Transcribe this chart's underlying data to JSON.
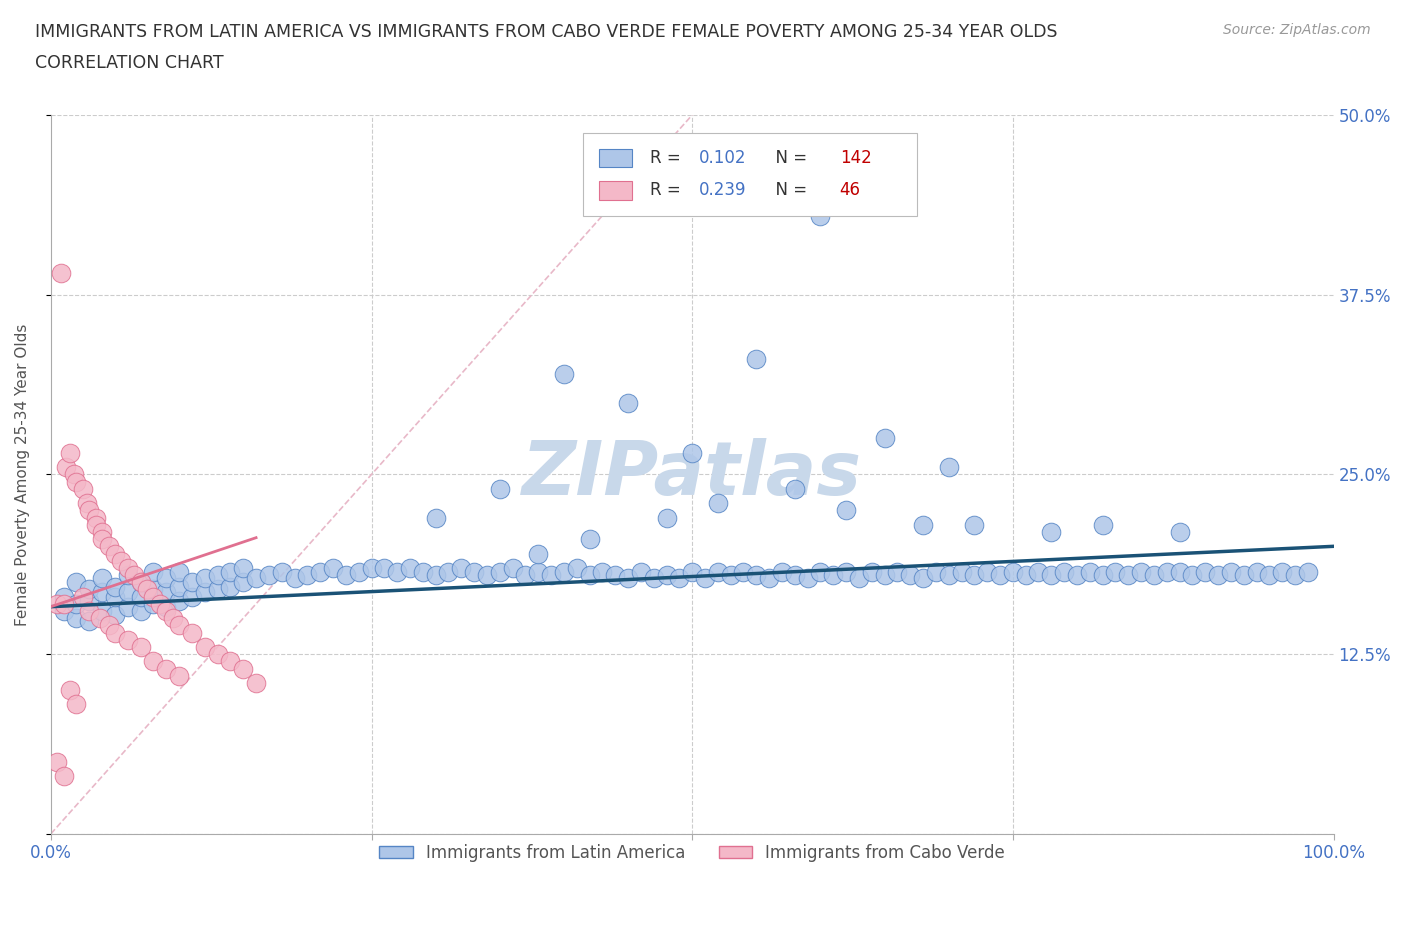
{
  "title_line1": "IMMIGRANTS FROM LATIN AMERICA VS IMMIGRANTS FROM CABO VERDE FEMALE POVERTY AMONG 25-34 YEAR OLDS",
  "title_line2": "CORRELATION CHART",
  "source_text": "Source: ZipAtlas.com",
  "ylabel": "Female Poverty Among 25-34 Year Olds",
  "xlim": [
    0.0,
    1.0
  ],
  "ylim": [
    0.0,
    0.5
  ],
  "xticks": [
    0.0,
    0.25,
    0.5,
    0.75,
    1.0
  ],
  "yticks": [
    0.0,
    0.125,
    0.25,
    0.375,
    0.5
  ],
  "series_latin": {
    "label": "Immigrants from Latin America",
    "color": "#aec6e8",
    "edge_color": "#5585c5",
    "R": 0.102,
    "N": 142,
    "trend_color": "#1a5276",
    "trend_intercept": 0.158,
    "trend_slope": 0.042
  },
  "series_cabo": {
    "label": "Immigrants from Cabo Verde",
    "color": "#f4b8c8",
    "edge_color": "#e07090",
    "R": 0.239,
    "N": 46,
    "trend_color": "#e07090",
    "trend_intercept": 0.158,
    "trend_slope": 0.3
  },
  "watermark": "ZIPatlas",
  "watermark_color": "#c8d8ea",
  "background_color": "#ffffff",
  "grid_color": "#cccccc",
  "title_color": "#333333",
  "axis_label_color": "#555555",
  "tick_label_color": "#4472c4",
  "legend_R_color": "#4472c4",
  "legend_N_color": "#c00000",
  "diag_color": "#e8b8c8",
  "latin_x": [
    0.01,
    0.01,
    0.02,
    0.02,
    0.02,
    0.03,
    0.03,
    0.03,
    0.04,
    0.04,
    0.04,
    0.05,
    0.05,
    0.05,
    0.06,
    0.06,
    0.06,
    0.07,
    0.07,
    0.07,
    0.08,
    0.08,
    0.08,
    0.09,
    0.09,
    0.09,
    0.1,
    0.1,
    0.1,
    0.11,
    0.11,
    0.12,
    0.12,
    0.13,
    0.13,
    0.14,
    0.14,
    0.15,
    0.15,
    0.16,
    0.17,
    0.18,
    0.19,
    0.2,
    0.21,
    0.22,
    0.23,
    0.24,
    0.25,
    0.26,
    0.27,
    0.28,
    0.29,
    0.3,
    0.31,
    0.32,
    0.33,
    0.34,
    0.35,
    0.36,
    0.37,
    0.38,
    0.39,
    0.4,
    0.41,
    0.42,
    0.43,
    0.44,
    0.45,
    0.46,
    0.47,
    0.48,
    0.49,
    0.5,
    0.51,
    0.52,
    0.53,
    0.54,
    0.55,
    0.56,
    0.57,
    0.58,
    0.59,
    0.6,
    0.61,
    0.62,
    0.63,
    0.64,
    0.65,
    0.66,
    0.67,
    0.68,
    0.69,
    0.7,
    0.71,
    0.72,
    0.73,
    0.74,
    0.75,
    0.76,
    0.77,
    0.78,
    0.79,
    0.8,
    0.81,
    0.82,
    0.83,
    0.84,
    0.85,
    0.86,
    0.87,
    0.88,
    0.89,
    0.9,
    0.91,
    0.92,
    0.93,
    0.94,
    0.95,
    0.96,
    0.97,
    0.98,
    0.55,
    0.6,
    0.45,
    0.4,
    0.5,
    0.3,
    0.35,
    0.65,
    0.7,
    0.48,
    0.52,
    0.38,
    0.42,
    0.58,
    0.62,
    0.68,
    0.72,
    0.78,
    0.82,
    0.88
  ],
  "latin_y": [
    0.155,
    0.165,
    0.15,
    0.16,
    0.175,
    0.148,
    0.162,
    0.17,
    0.155,
    0.168,
    0.178,
    0.152,
    0.165,
    0.172,
    0.158,
    0.168,
    0.18,
    0.155,
    0.165,
    0.175,
    0.16,
    0.17,
    0.182,
    0.158,
    0.168,
    0.178,
    0.162,
    0.172,
    0.182,
    0.165,
    0.175,
    0.168,
    0.178,
    0.17,
    0.18,
    0.172,
    0.182,
    0.175,
    0.185,
    0.178,
    0.18,
    0.182,
    0.178,
    0.18,
    0.182,
    0.185,
    0.18,
    0.182,
    0.185,
    0.185,
    0.182,
    0.185,
    0.182,
    0.18,
    0.182,
    0.185,
    0.182,
    0.18,
    0.182,
    0.185,
    0.18,
    0.182,
    0.18,
    0.182,
    0.185,
    0.18,
    0.182,
    0.18,
    0.178,
    0.182,
    0.178,
    0.18,
    0.178,
    0.182,
    0.178,
    0.182,
    0.18,
    0.182,
    0.18,
    0.178,
    0.182,
    0.18,
    0.178,
    0.182,
    0.18,
    0.182,
    0.178,
    0.182,
    0.18,
    0.182,
    0.18,
    0.178,
    0.182,
    0.18,
    0.182,
    0.18,
    0.182,
    0.18,
    0.182,
    0.18,
    0.182,
    0.18,
    0.182,
    0.18,
    0.182,
    0.18,
    0.182,
    0.18,
    0.182,
    0.18,
    0.182,
    0.182,
    0.18,
    0.182,
    0.18,
    0.182,
    0.18,
    0.182,
    0.18,
    0.182,
    0.18,
    0.182,
    0.33,
    0.43,
    0.3,
    0.32,
    0.265,
    0.22,
    0.24,
    0.275,
    0.255,
    0.22,
    0.23,
    0.195,
    0.205,
    0.24,
    0.225,
    0.215,
    0.215,
    0.21,
    0.215,
    0.21
  ],
  "cabo_x": [
    0.005,
    0.005,
    0.008,
    0.01,
    0.01,
    0.012,
    0.015,
    0.015,
    0.018,
    0.02,
    0.02,
    0.025,
    0.025,
    0.028,
    0.03,
    0.03,
    0.035,
    0.035,
    0.038,
    0.04,
    0.04,
    0.045,
    0.045,
    0.05,
    0.05,
    0.055,
    0.06,
    0.06,
    0.065,
    0.07,
    0.07,
    0.075,
    0.08,
    0.08,
    0.085,
    0.09,
    0.09,
    0.095,
    0.1,
    0.1,
    0.11,
    0.12,
    0.13,
    0.14,
    0.15,
    0.16
  ],
  "cabo_y": [
    0.16,
    0.05,
    0.39,
    0.16,
    0.04,
    0.255,
    0.265,
    0.1,
    0.25,
    0.245,
    0.09,
    0.24,
    0.165,
    0.23,
    0.225,
    0.155,
    0.22,
    0.215,
    0.15,
    0.21,
    0.205,
    0.2,
    0.145,
    0.195,
    0.14,
    0.19,
    0.185,
    0.135,
    0.18,
    0.175,
    0.13,
    0.17,
    0.165,
    0.12,
    0.16,
    0.155,
    0.115,
    0.15,
    0.145,
    0.11,
    0.14,
    0.13,
    0.125,
    0.12,
    0.115,
    0.105
  ]
}
